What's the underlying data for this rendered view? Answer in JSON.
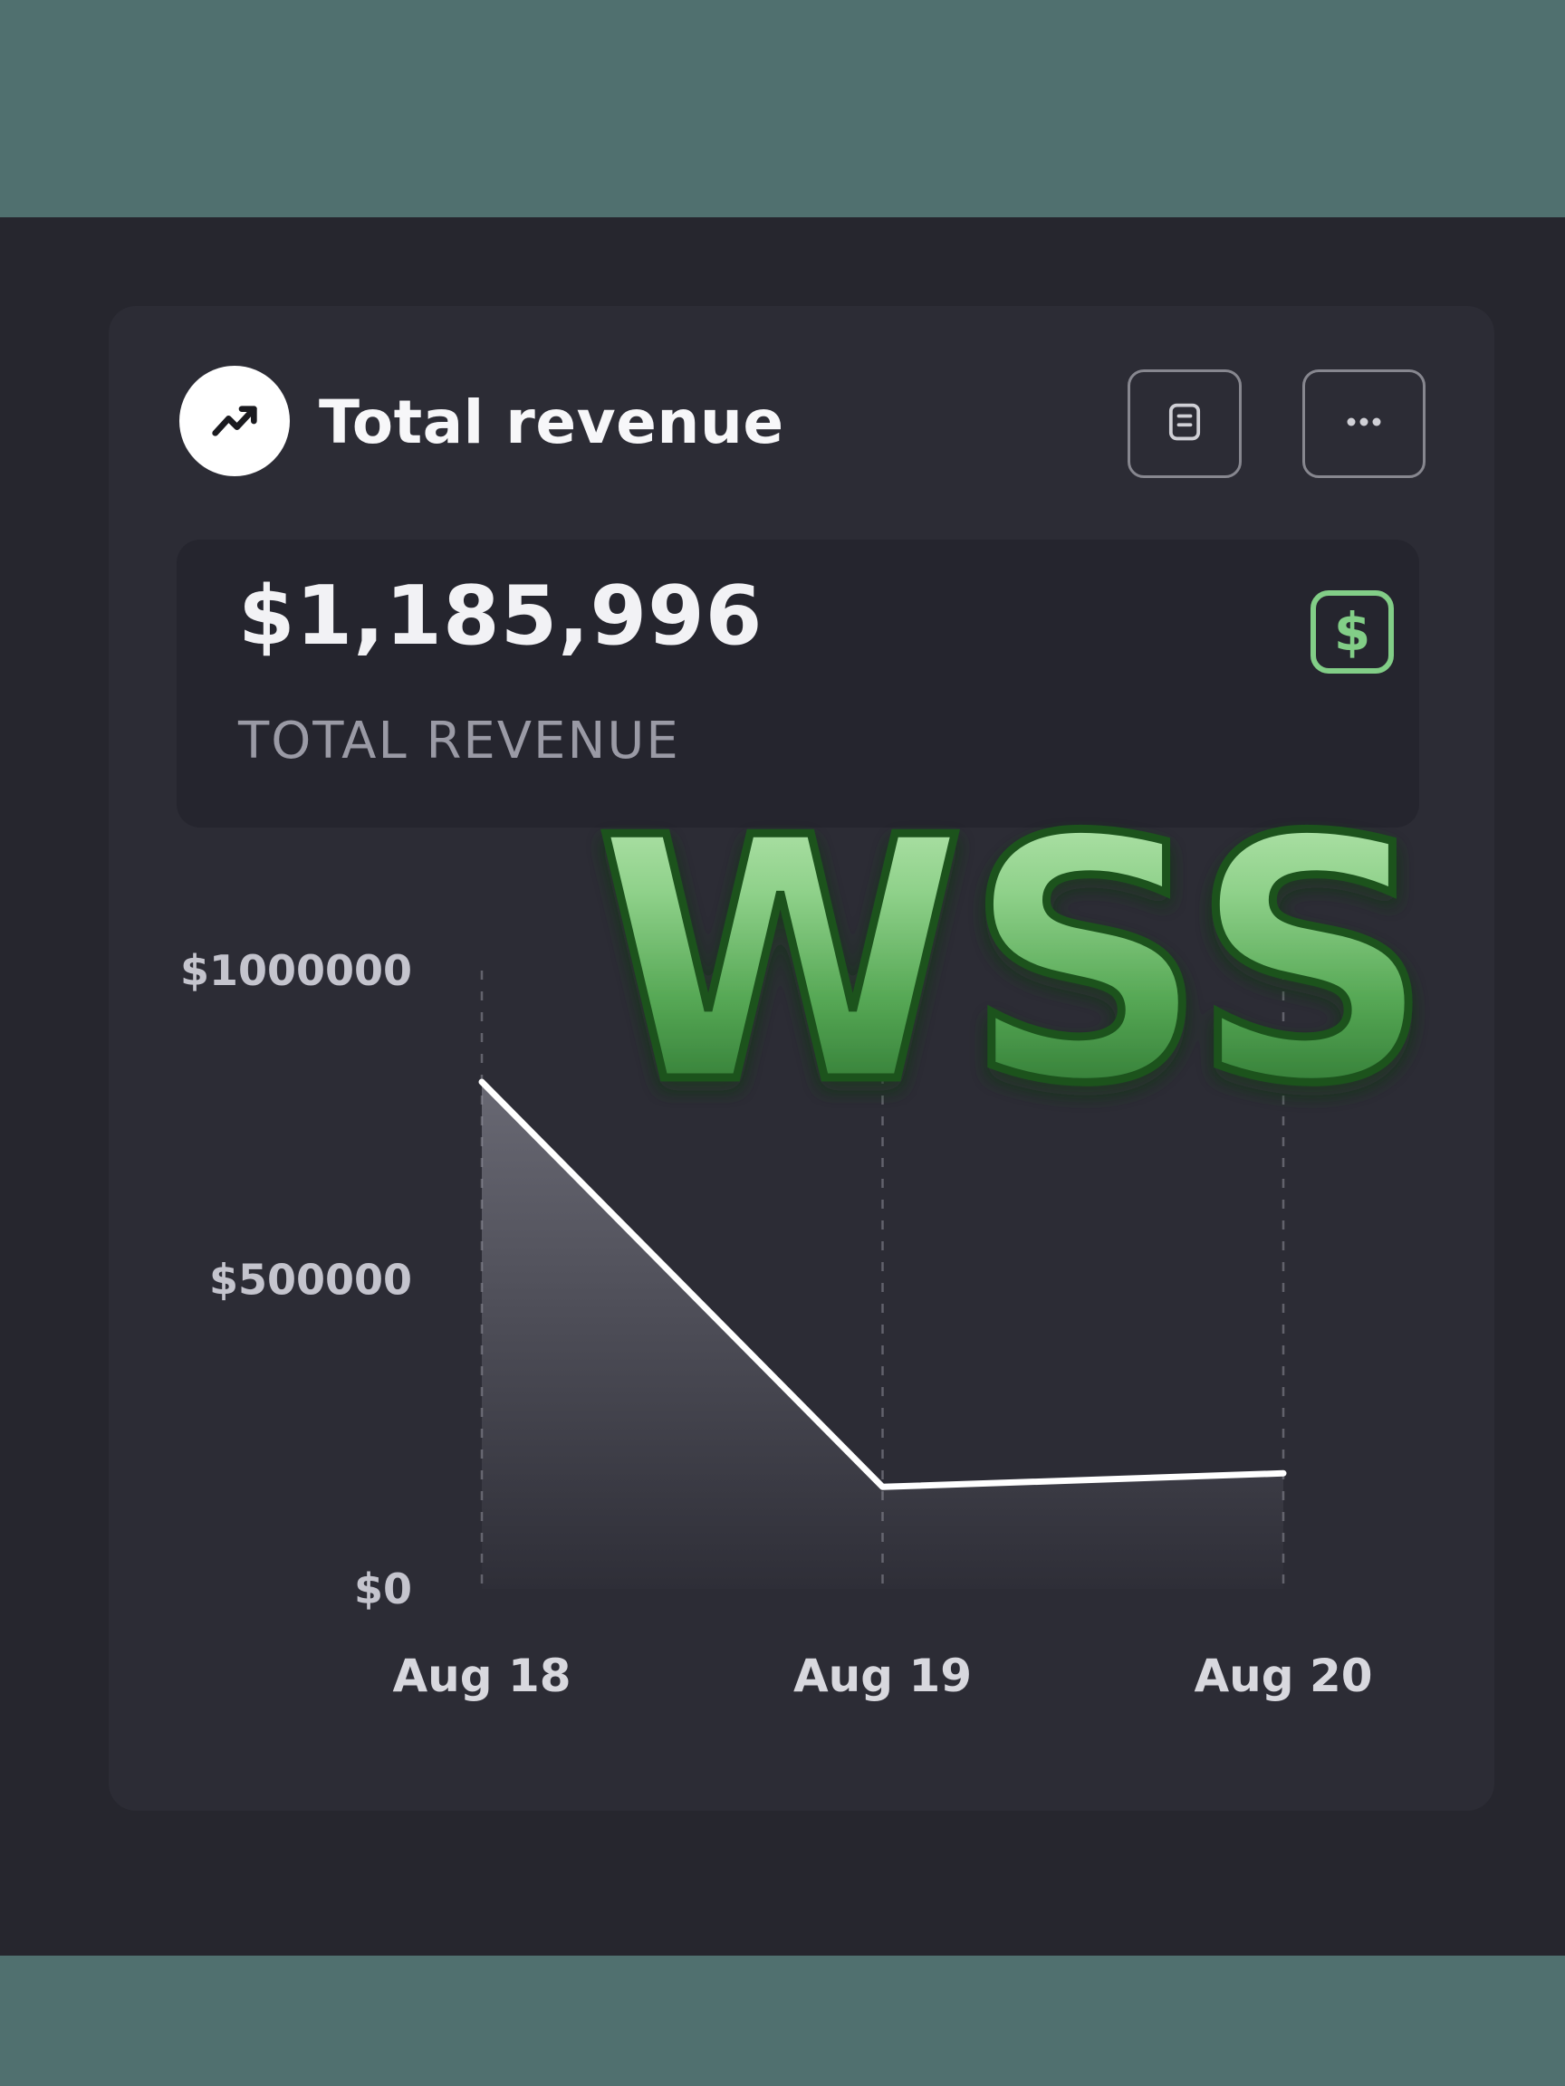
{
  "header": {
    "title": "Total revenue"
  },
  "toolbar": {
    "note_button": "note-icon",
    "more_button": "ellipsis-icon"
  },
  "stat": {
    "value": "$1,185,996",
    "label": "TOTAL REVENUE",
    "icon_glyph": "$",
    "icon_color": "#82ce87"
  },
  "watermark": {
    "text": "WSS",
    "color_top": "#c2ecba",
    "color_bottom": "#1c5f22"
  },
  "chart_data": {
    "type": "area",
    "title": "",
    "xlabel": "",
    "ylabel": "",
    "categories": [
      "Aug 18",
      "Aug 19",
      "Aug 20"
    ],
    "values": [
      820000,
      165000,
      187000
    ],
    "ylim": [
      0,
      1000000
    ],
    "y_ticks": [
      {
        "value": 0,
        "label": "$0"
      },
      {
        "value": 500000,
        "label": "$500000"
      },
      {
        "value": 1000000,
        "label": "$1000000"
      }
    ],
    "grid": "dashed-vertical",
    "line_color": "#ffffff",
    "legend": "none"
  },
  "colors": {
    "band": "#50706f",
    "background": "#26262e",
    "card": "#2c2c35",
    "panel": "#25252e",
    "accent_green": "#82ce87"
  }
}
